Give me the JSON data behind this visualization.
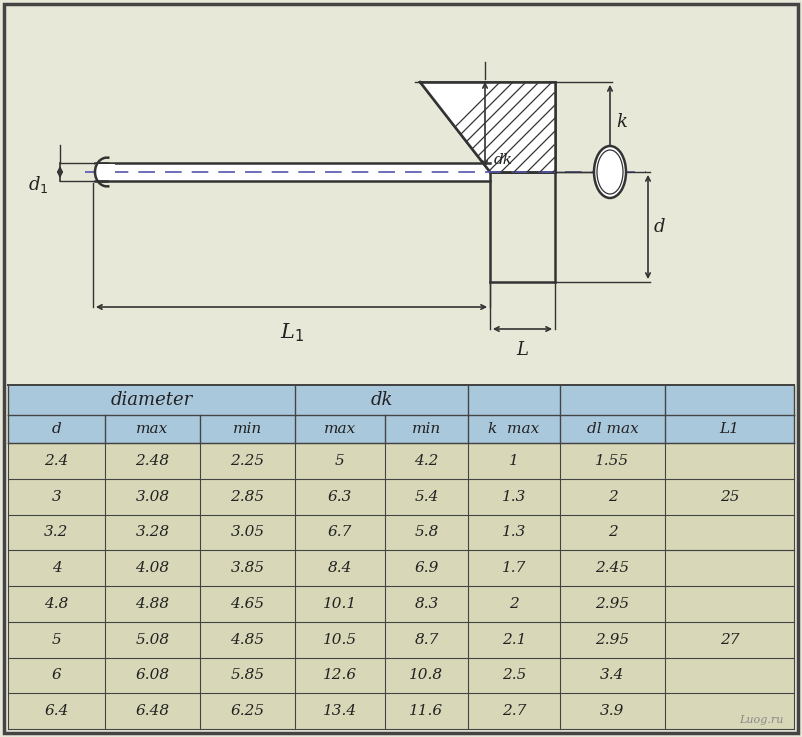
{
  "bg_color": "#e8e8d8",
  "diagram_bg": "#e8e8d8",
  "table_header_bg": "#aac8dc",
  "table_data_bg": "#d8d8b8",
  "border_color": "#333333",
  "text_color": "#222222",
  "table_rows": [
    [
      "2.4",
      "2.48",
      "2.25",
      "5",
      "4.2",
      "1",
      "1.55"
    ],
    [
      "3",
      "3.08",
      "2.85",
      "6.3",
      "5.4",
      "1.3",
      "2"
    ],
    [
      "3.2",
      "3.28",
      "3.05",
      "6.7",
      "5.8",
      "1.3",
      "2"
    ],
    [
      "4",
      "4.08",
      "3.85",
      "8.4",
      "6.9",
      "1.7",
      "2.45"
    ],
    [
      "4.8",
      "4.88",
      "4.65",
      "10.1",
      "8.3",
      "2",
      "2.95"
    ],
    [
      "5",
      "5.08",
      "4.85",
      "10.5",
      "8.7",
      "2.1",
      "2.95"
    ],
    [
      "6",
      "6.08",
      "5.85",
      "12.6",
      "10.8",
      "2.5",
      "3.4"
    ],
    [
      "6.4",
      "6.48",
      "6.25",
      "13.4",
      "11.6",
      "2.7",
      "3.9"
    ]
  ],
  "l1_group1_rows": [
    0,
    1,
    2
  ],
  "l1_group1_val": "25",
  "l1_group2_rows": [
    3,
    4,
    5,
    6,
    7
  ],
  "l1_group2_val": "27",
  "watermark": "Luog.ru",
  "lc": "#333333",
  "dash_color": "#5555aa"
}
